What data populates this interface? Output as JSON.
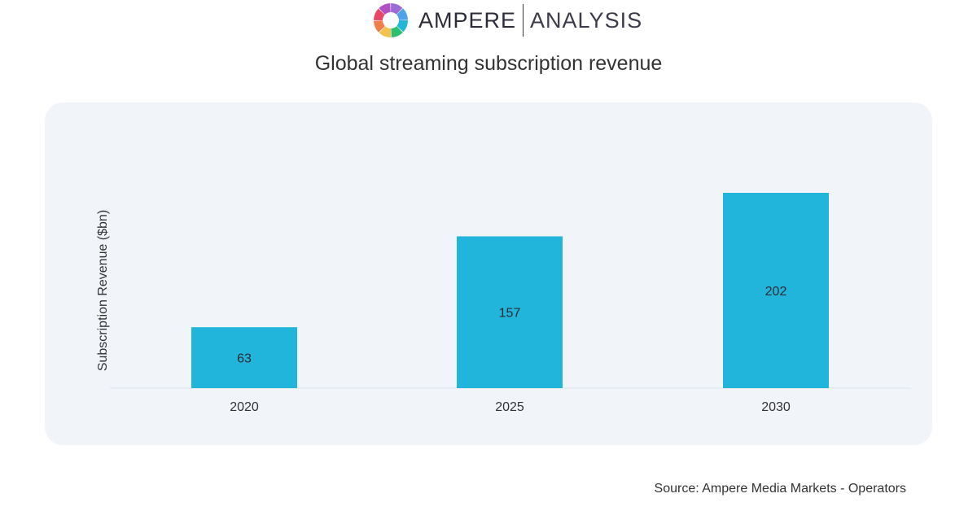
{
  "brand": {
    "name": "AMPERE",
    "sub": "ANALYSIS",
    "logo_icon": "ampere-ring-logo-icon",
    "logo_colors": [
      "#9b6bd6",
      "#4fa3e8",
      "#23b6d9",
      "#2fbf71",
      "#f2c14e",
      "#f07e4a",
      "#e8476a",
      "#b14fc4"
    ]
  },
  "colors": {
    "bar": "#22b5dc",
    "panel": "#f1f4f9",
    "axis_line": "#dde3ec"
  },
  "chart_data": {
    "type": "bar",
    "title": "Global streaming subscription revenue",
    "ylabel": "Subscription Revenue ($bn)",
    "xlabel": "",
    "categories": [
      "2020",
      "2025",
      "2030"
    ],
    "values": [
      63,
      157,
      202
    ],
    "data_labels": [
      "63",
      "157",
      "202"
    ],
    "ylim": [
      0,
      202
    ],
    "grid": false,
    "legend": "none"
  },
  "source": "Source: Ampere Media Markets - Operators"
}
